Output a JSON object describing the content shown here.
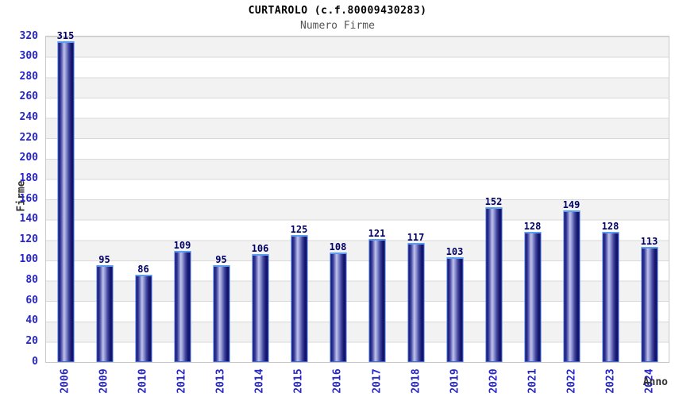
{
  "header": {
    "title": "CURTAROLO (c.f.80009430283)",
    "subtitle": "Numero Firme"
  },
  "chart_data": {
    "type": "bar",
    "title": "CURTAROLO (c.f.80009430283)",
    "subtitle": "Numero Firme",
    "xlabel": "Anno",
    "ylabel": "Firme",
    "categories": [
      "2006",
      "2009",
      "2010",
      "2012",
      "2013",
      "2014",
      "2015",
      "2016",
      "2017",
      "2018",
      "2019",
      "2020",
      "2021",
      "2022",
      "2023",
      "2024"
    ],
    "values": [
      315,
      95,
      86,
      109,
      95,
      106,
      125,
      108,
      121,
      117,
      103,
      152,
      128,
      149,
      128,
      113
    ],
    "ylim": [
      0,
      320
    ],
    "ytick_step": 20,
    "yticks": [
      0,
      20,
      40,
      60,
      80,
      100,
      120,
      140,
      160,
      180,
      200,
      220,
      240,
      260,
      280,
      300,
      320
    ],
    "grid": "horizontal-bands",
    "legend": "none",
    "colors": {
      "tick_label": "#2626cc",
      "value_label": "#000066",
      "title": "#000000",
      "subtitle": "#555555",
      "axis_title": "#333333",
      "band": "#f2f2f2",
      "gridline": "#d9d9d9",
      "plot_border": "#c9c9c9",
      "bar_dark": "#12126b",
      "bar_light": "#bfc3ea",
      "bar_border": "#3d6edb",
      "bar_top_highlight": "#5c9ded",
      "background": "#ffffff"
    }
  }
}
